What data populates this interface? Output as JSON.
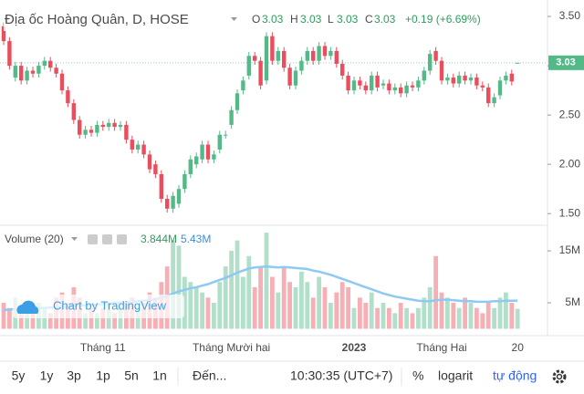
{
  "chart_data": {
    "type": "candlestick",
    "title": "Địa ốc Hoàng Quân, D, HOSE",
    "legend": {
      "o": "O",
      "h": "H",
      "l": "L",
      "c": "C",
      "change": "+0.19 (+6.69%)"
    },
    "categories": [
      null,
      null,
      null,
      null,
      null,
      null,
      null,
      null,
      null,
      null,
      null,
      null,
      null,
      null,
      null,
      null,
      null,
      "Tháng 11",
      null,
      null,
      null,
      null,
      null,
      null,
      null,
      null,
      null,
      null,
      null,
      null,
      null,
      null,
      null,
      null,
      null,
      null,
      null,
      null,
      null,
      "Tháng Mười hai",
      null,
      null,
      null,
      null,
      null,
      null,
      null,
      null,
      null,
      null,
      null,
      null,
      null,
      null,
      null,
      null,
      null,
      null,
      null,
      null,
      "2023",
      null,
      null,
      null,
      null,
      null,
      null,
      null,
      null,
      null,
      null,
      null,
      null,
      null,
      null,
      "Tháng Hai",
      null,
      null,
      null,
      null,
      null,
      null,
      null,
      null,
      null,
      null,
      null,
      null,
      "20"
    ],
    "open": [
      3.4,
      3.25,
      2.88,
      3.0,
      2.85,
      2.95,
      2.92,
      3.0,
      3.05,
      2.98,
      2.92,
      2.75,
      2.62,
      2.45,
      2.3,
      2.35,
      2.32,
      2.4,
      2.38,
      2.42,
      2.38,
      2.4,
      2.25,
      2.15,
      2.2,
      2.1,
      2.0,
      1.9,
      1.65,
      1.55,
      1.6,
      1.75,
      1.9,
      2.0,
      2.05,
      2.2,
      2.05,
      2.15,
      2.3,
      2.4,
      2.55,
      2.75,
      2.9,
      3.1,
      3.05,
      2.85,
      3.3,
      3.05,
      3.15,
      2.98,
      2.8,
      2.95,
      3.05,
      3.15,
      3.05,
      3.2,
      3.1,
      3.15,
      3.02,
      2.9,
      2.75,
      2.85,
      2.8,
      2.75,
      2.9,
      2.8,
      2.82,
      2.75,
      2.78,
      2.72,
      2.8,
      2.78,
      2.85,
      2.95,
      3.15,
      3.05,
      2.85,
      2.88,
      2.82,
      2.9,
      2.85,
      2.88,
      2.8,
      2.78,
      2.62,
      2.7,
      2.85,
      2.92,
      3.03
    ],
    "high": [
      3.44,
      3.29,
      3.04,
      3.04,
      2.99,
      2.99,
      3.04,
      3.09,
      3.09,
      3.02,
      2.96,
      2.79,
      2.66,
      2.49,
      2.39,
      2.39,
      2.44,
      2.44,
      2.46,
      2.46,
      2.44,
      2.44,
      2.29,
      2.24,
      2.24,
      2.14,
      2.04,
      1.94,
      1.69,
      1.72,
      1.79,
      1.94,
      2.09,
      2.12,
      2.24,
      2.24,
      2.14,
      2.34,
      2.34,
      2.59,
      2.76,
      2.89,
      3.14,
      3.14,
      3.09,
      3.34,
      3.34,
      3.19,
      3.19,
      3.02,
      2.99,
      3.09,
      3.19,
      3.19,
      3.24,
      3.24,
      3.19,
      3.19,
      3.06,
      2.94,
      2.89,
      2.89,
      2.84,
      2.94,
      2.94,
      2.86,
      2.86,
      2.82,
      2.82,
      2.84,
      2.84,
      2.89,
      2.99,
      3.16,
      3.19,
      3.09,
      2.92,
      2.92,
      2.94,
      2.94,
      2.92,
      2.92,
      2.84,
      2.82,
      2.72,
      2.89,
      2.94,
      2.96,
      3.03
    ],
    "low": [
      3.21,
      2.96,
      2.84,
      2.81,
      2.81,
      2.88,
      2.88,
      2.96,
      2.94,
      2.88,
      2.71,
      2.58,
      2.41,
      2.26,
      2.26,
      2.28,
      2.28,
      2.34,
      2.34,
      2.34,
      2.34,
      2.21,
      2.11,
      2.11,
      2.06,
      1.91,
      1.86,
      1.61,
      1.51,
      1.51,
      1.56,
      1.71,
      1.86,
      1.96,
      2.01,
      2.01,
      2.01,
      2.11,
      2.26,
      2.36,
      2.51,
      2.71,
      2.86,
      3.01,
      2.76,
      2.81,
      3.01,
      3.01,
      2.94,
      2.76,
      2.76,
      2.91,
      3.01,
      3.01,
      3.01,
      3.06,
      3.06,
      2.98,
      2.86,
      2.71,
      2.71,
      2.76,
      2.71,
      2.71,
      2.74,
      2.76,
      2.71,
      2.71,
      2.68,
      2.68,
      2.74,
      2.74,
      2.81,
      2.91,
      3.01,
      2.81,
      2.81,
      2.78,
      2.78,
      2.81,
      2.81,
      2.76,
      2.74,
      2.58,
      2.58,
      2.66,
      2.81,
      2.8,
      3.03
    ],
    "close": [
      3.25,
      3.0,
      3.0,
      2.85,
      2.95,
      2.92,
      3.0,
      3.05,
      2.98,
      2.92,
      2.75,
      2.62,
      2.45,
      2.3,
      2.35,
      2.32,
      2.4,
      2.38,
      2.42,
      2.38,
      2.4,
      2.25,
      2.15,
      2.2,
      2.1,
      1.95,
      1.9,
      1.65,
      1.55,
      1.68,
      1.75,
      1.9,
      2.05,
      2.08,
      2.2,
      2.05,
      2.1,
      2.3,
      2.3,
      2.55,
      2.72,
      2.85,
      3.1,
      3.05,
      2.8,
      3.3,
      3.05,
      3.15,
      2.98,
      2.8,
      2.95,
      3.05,
      3.15,
      3.05,
      3.2,
      3.1,
      3.15,
      3.02,
      2.9,
      2.75,
      2.85,
      2.8,
      2.75,
      2.9,
      2.78,
      2.82,
      2.75,
      2.78,
      2.72,
      2.8,
      2.78,
      2.85,
      2.95,
      3.12,
      3.05,
      2.85,
      2.88,
      2.82,
      2.9,
      2.85,
      2.88,
      2.8,
      2.78,
      2.62,
      2.68,
      2.85,
      2.9,
      2.84,
      3.03
    ],
    "color_up": "#53b987",
    "color_down": "#eb4d5c",
    "ylim": [
      1.4,
      3.667
    ],
    "yticks": [
      {
        "value": 3.5,
        "label": "3.50"
      },
      {
        "value": 3.0,
        "label": "3.00"
      },
      {
        "value": 2.5,
        "label": "2.50"
      },
      {
        "value": 2.0,
        "label": "2.00"
      },
      {
        "value": 1.5,
        "label": "1.50"
      }
    ],
    "volume": {
      "name": "Volume (20)",
      "values": [
        5,
        4,
        6,
        3,
        4,
        3,
        5,
        4,
        3,
        6,
        7,
        5,
        8,
        6,
        3,
        4,
        3,
        4,
        5,
        3,
        4,
        5,
        6,
        4,
        5,
        7,
        6,
        9,
        12,
        17,
        16,
        10,
        9,
        8,
        7,
        6,
        5,
        9,
        12,
        15,
        17,
        10,
        14,
        8,
        12,
        18.5,
        10,
        7,
        12,
        9,
        8,
        11,
        9,
        6,
        10,
        8,
        5,
        7,
        9,
        8,
        4,
        6,
        5,
        7,
        4,
        5,
        4,
        3,
        5,
        4,
        3,
        4,
        6,
        8,
        14,
        7,
        6,
        5,
        4,
        6,
        5,
        4,
        3,
        5,
        4,
        6,
        7,
        5,
        3.844
      ],
      "value_label": "3.844M",
      "ma_values": [
        3.6,
        3.7,
        3.8,
        3.8,
        3.9,
        3.9,
        4.0,
        4.0,
        4.1,
        4.1,
        4.2,
        4.3,
        4.4,
        4.5,
        4.5,
        4.6,
        4.7,
        4.8,
        4.9,
        5.0,
        5.0,
        5.1,
        5.2,
        5.3,
        5.4,
        5.5,
        5.7,
        6.0,
        6.3,
        6.8,
        7.2,
        7.5,
        7.8,
        8.0,
        8.3,
        8.6,
        9.0,
        9.4,
        9.8,
        10.3,
        10.8,
        11.2,
        11.6,
        11.8,
        11.9,
        12.0,
        11.9,
        11.8,
        11.9,
        11.8,
        11.7,
        11.6,
        11.5,
        11.2,
        11.0,
        10.7,
        10.4,
        10.0,
        9.6,
        9.2,
        8.8,
        8.4,
        8.0,
        7.6,
        7.2,
        6.8,
        6.5,
        6.2,
        6.0,
        5.8,
        5.6,
        5.4,
        5.3,
        5.3,
        5.5,
        5.6,
        5.6,
        5.5,
        5.4,
        5.3,
        5.3,
        5.2,
        5.2,
        5.2,
        5.3,
        5.3,
        5.4,
        5.4,
        5.43
      ],
      "ma_label": "5.43M",
      "ma_color": "#8ec9f2",
      "ylim": [
        0,
        19.4
      ],
      "yticks": [
        {
          "value": 15,
          "label": "15M"
        },
        {
          "value": 5,
          "label": "5M"
        }
      ]
    }
  },
  "watermark": "Chart by TradingView",
  "toolbar": {
    "ranges": [
      "5y",
      "1y",
      "3p",
      "1p",
      "5n",
      "1n"
    ],
    "goto": "Đến...",
    "time": "10:30:35 (UTC+7)",
    "percent": "%",
    "log": "logarit",
    "auto": "tự động"
  }
}
